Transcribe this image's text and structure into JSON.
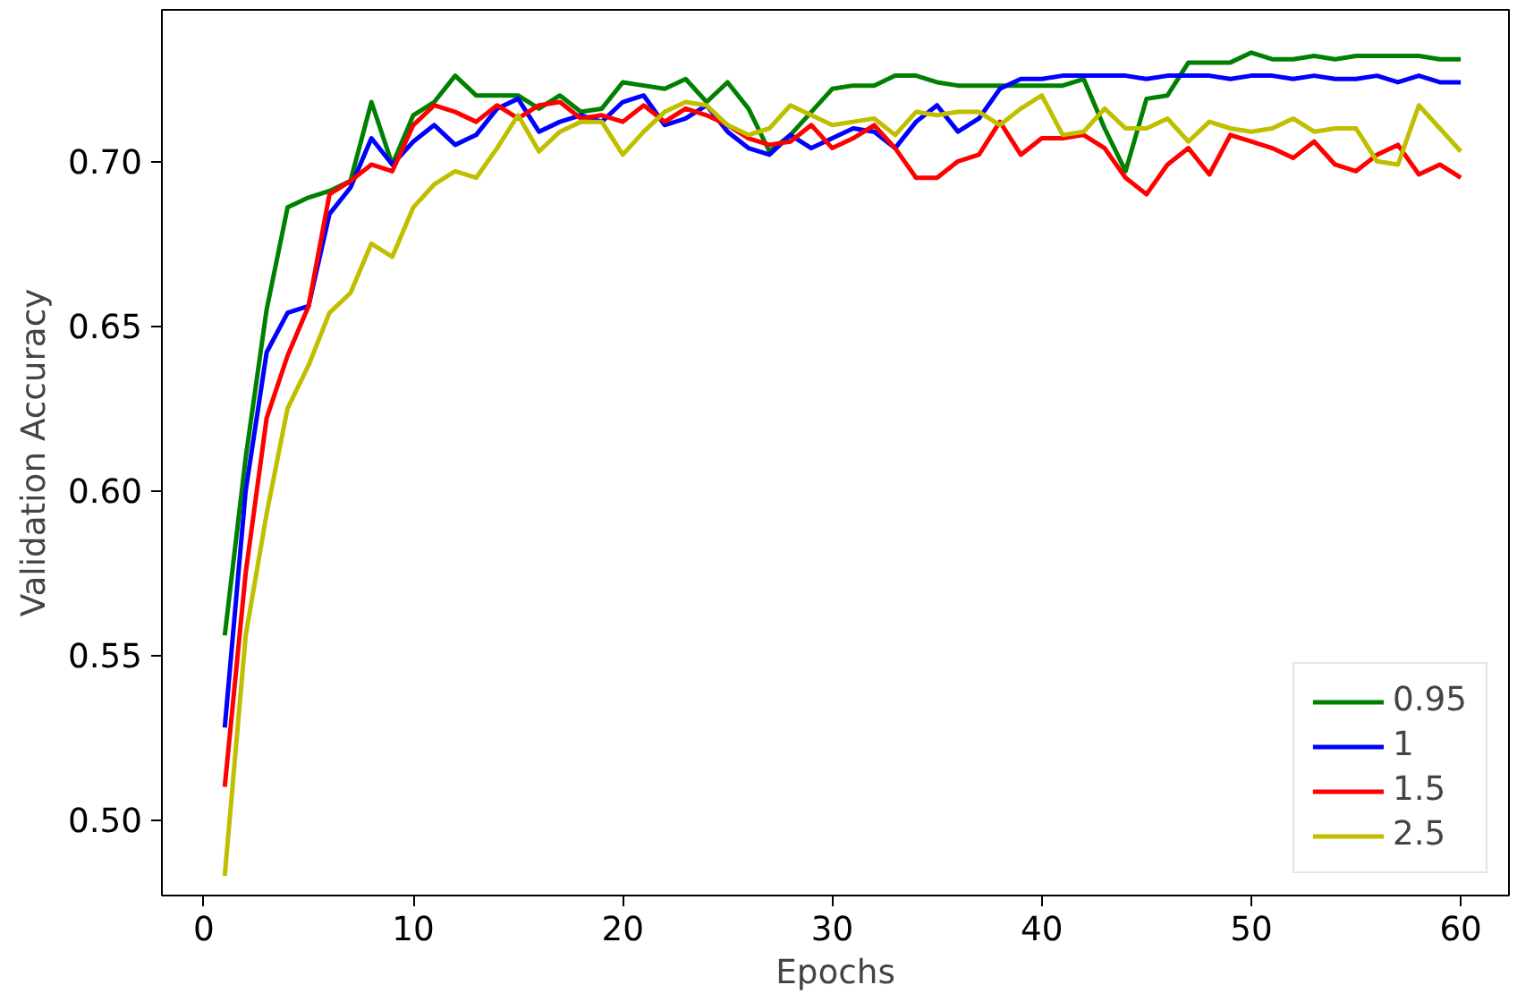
{
  "chart_data": {
    "type": "line",
    "xlabel": "Epochs",
    "ylabel": "Validation Accuracy",
    "x": [
      1,
      2,
      3,
      4,
      5,
      6,
      7,
      8,
      9,
      10,
      11,
      12,
      13,
      14,
      15,
      16,
      17,
      18,
      19,
      20,
      21,
      22,
      23,
      24,
      25,
      26,
      27,
      28,
      29,
      30,
      31,
      32,
      33,
      34,
      35,
      36,
      37,
      38,
      39,
      40,
      41,
      42,
      43,
      44,
      45,
      46,
      47,
      48,
      49,
      50,
      51,
      52,
      53,
      54,
      55,
      56,
      57,
      58,
      59,
      60
    ],
    "series": [
      {
        "name": "0.95",
        "color": "#008000",
        "values": [
          0.556,
          0.61,
          0.655,
          0.686,
          0.689,
          0.691,
          0.694,
          0.718,
          0.699,
          0.714,
          0.718,
          0.726,
          0.72,
          0.72,
          0.72,
          0.716,
          0.72,
          0.715,
          0.716,
          0.724,
          0.723,
          0.722,
          0.725,
          0.718,
          0.724,
          0.716,
          0.703,
          0.708,
          0.715,
          0.722,
          0.723,
          0.723,
          0.726,
          0.726,
          0.724,
          0.723,
          0.723,
          0.723,
          0.723,
          0.723,
          0.723,
          0.725,
          0.71,
          0.697,
          0.719,
          0.72,
          0.73,
          0.73,
          0.73,
          0.733,
          0.731,
          0.731,
          0.732,
          0.731,
          0.732,
          0.732,
          0.732,
          0.732,
          0.731,
          0.731
        ]
      },
      {
        "name": "1",
        "color": "#0000ff",
        "values": [
          0.528,
          0.6,
          0.642,
          0.654,
          0.656,
          0.684,
          0.692,
          0.707,
          0.699,
          0.706,
          0.711,
          0.705,
          0.708,
          0.716,
          0.719,
          0.709,
          0.712,
          0.714,
          0.712,
          0.718,
          0.72,
          0.711,
          0.713,
          0.717,
          0.709,
          0.704,
          0.702,
          0.708,
          0.704,
          0.707,
          0.71,
          0.709,
          0.704,
          0.712,
          0.717,
          0.709,
          0.713,
          0.722,
          0.725,
          0.725,
          0.726,
          0.726,
          0.726,
          0.726,
          0.725,
          0.726,
          0.726,
          0.726,
          0.725,
          0.726,
          0.726,
          0.725,
          0.726,
          0.725,
          0.725,
          0.726,
          0.724,
          0.726,
          0.724,
          0.724
        ]
      },
      {
        "name": "1.5",
        "color": "#ff0000",
        "values": [
          0.51,
          0.575,
          0.622,
          0.641,
          0.656,
          0.69,
          0.694,
          0.699,
          0.697,
          0.711,
          0.717,
          0.715,
          0.712,
          0.717,
          0.713,
          0.717,
          0.718,
          0.713,
          0.714,
          0.712,
          0.717,
          0.712,
          0.716,
          0.714,
          0.711,
          0.707,
          0.705,
          0.706,
          0.711,
          0.704,
          0.707,
          0.711,
          0.704,
          0.695,
          0.695,
          0.7,
          0.702,
          0.712,
          0.702,
          0.707,
          0.707,
          0.708,
          0.704,
          0.695,
          0.69,
          0.699,
          0.704,
          0.696,
          0.708,
          0.706,
          0.704,
          0.701,
          0.706,
          0.699,
          0.697,
          0.702,
          0.705,
          0.696,
          0.699,
          0.695
        ]
      },
      {
        "name": "2.5",
        "color": "#bfbf00",
        "values": [
          0.483,
          0.556,
          0.593,
          0.625,
          0.638,
          0.654,
          0.66,
          0.675,
          0.671,
          0.686,
          0.693,
          0.697,
          0.695,
          0.704,
          0.714,
          0.703,
          0.709,
          0.712,
          0.712,
          0.702,
          0.709,
          0.715,
          0.718,
          0.717,
          0.711,
          0.708,
          0.71,
          0.717,
          0.714,
          0.711,
          0.712,
          0.713,
          0.708,
          0.715,
          0.714,
          0.715,
          0.715,
          0.711,
          0.716,
          0.72,
          0.708,
          0.709,
          0.716,
          0.71,
          0.71,
          0.713,
          0.706,
          0.712,
          0.71,
          0.709,
          0.71,
          0.713,
          0.709,
          0.71,
          0.71,
          0.7,
          0.699,
          0.717,
          0.71,
          0.703
        ]
      }
    ],
    "xlim": [
      -2,
      62.3
    ],
    "xticks": [
      0,
      10,
      20,
      30,
      40,
      50,
      60
    ],
    "ylim": [
      0.477,
      0.746
    ],
    "yticks": [
      {
        "value": 0.5,
        "label": "0.50"
      },
      {
        "value": 0.55,
        "label": "0.55"
      },
      {
        "value": 0.6,
        "label": "0.60"
      },
      {
        "value": 0.65,
        "label": "0.65"
      },
      {
        "value": 0.7,
        "label": "0.70"
      }
    ],
    "legend": "bottom right",
    "grid": false,
    "marker": "none",
    "line_style": "solid"
  }
}
